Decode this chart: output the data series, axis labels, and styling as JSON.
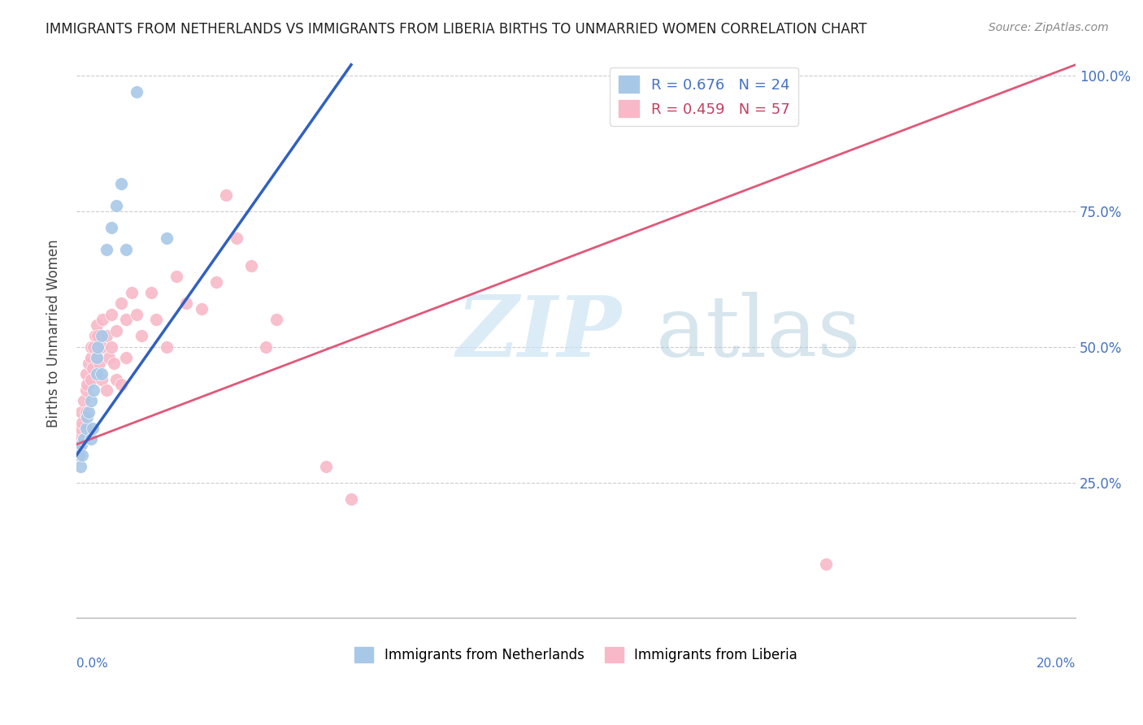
{
  "title": "IMMIGRANTS FROM NETHERLANDS VS IMMIGRANTS FROM LIBERIA BIRTHS TO UNMARRIED WOMEN CORRELATION CHART",
  "source": "Source: ZipAtlas.com",
  "ylabel": "Births to Unmarried Women",
  "yticks_right": [
    "25.0%",
    "50.0%",
    "75.0%",
    "100.0%"
  ],
  "yticks_right_vals": [
    0.25,
    0.5,
    0.75,
    1.0
  ],
  "legend_netherlands": "R = 0.676   N = 24",
  "legend_liberia": "R = 0.459   N = 57",
  "netherlands_color": "#a8c8e8",
  "liberia_color": "#f8b8c8",
  "netherlands_line_color": "#3060c0",
  "liberia_line_color": "#e05878",
  "nl_trend_x0": 0.0,
  "nl_trend_y0": 0.3,
  "nl_trend_x1": 0.055,
  "nl_trend_y1": 1.02,
  "lib_trend_x0": 0.0,
  "lib_trend_y0": 0.32,
  "lib_trend_x1": 0.2,
  "lib_trend_y1": 1.02,
  "netherlands_x": [
    0.0005,
    0.0008,
    0.001,
    0.0012,
    0.0015,
    0.002,
    0.0022,
    0.0025,
    0.003,
    0.003,
    0.0032,
    0.0035,
    0.004,
    0.004,
    0.0042,
    0.005,
    0.005,
    0.006,
    0.007,
    0.008,
    0.009,
    0.01,
    0.012,
    0.018
  ],
  "netherlands_y": [
    0.3,
    0.28,
    0.32,
    0.3,
    0.33,
    0.35,
    0.37,
    0.38,
    0.4,
    0.33,
    0.35,
    0.42,
    0.45,
    0.48,
    0.5,
    0.52,
    0.45,
    0.68,
    0.72,
    0.76,
    0.8,
    0.68,
    0.97,
    0.7
  ],
  "liberia_x": [
    0.0003,
    0.0005,
    0.0008,
    0.001,
    0.001,
    0.0012,
    0.0015,
    0.0015,
    0.002,
    0.002,
    0.002,
    0.0022,
    0.0025,
    0.0025,
    0.003,
    0.003,
    0.003,
    0.0032,
    0.0035,
    0.0038,
    0.004,
    0.004,
    0.0042,
    0.0045,
    0.005,
    0.005,
    0.0052,
    0.006,
    0.006,
    0.0065,
    0.007,
    0.007,
    0.0075,
    0.008,
    0.008,
    0.009,
    0.009,
    0.01,
    0.01,
    0.011,
    0.012,
    0.013,
    0.015,
    0.016,
    0.018,
    0.02,
    0.022,
    0.025,
    0.028,
    0.03,
    0.032,
    0.035,
    0.038,
    0.04,
    0.05,
    0.055,
    0.15
  ],
  "liberia_y": [
    0.33,
    0.3,
    0.35,
    0.32,
    0.38,
    0.36,
    0.33,
    0.4,
    0.42,
    0.38,
    0.45,
    0.43,
    0.47,
    0.35,
    0.48,
    0.5,
    0.44,
    0.46,
    0.5,
    0.52,
    0.48,
    0.54,
    0.52,
    0.47,
    0.5,
    0.44,
    0.55,
    0.42,
    0.52,
    0.48,
    0.56,
    0.5,
    0.47,
    0.53,
    0.44,
    0.58,
    0.43,
    0.55,
    0.48,
    0.6,
    0.56,
    0.52,
    0.6,
    0.55,
    0.5,
    0.63,
    0.58,
    0.57,
    0.62,
    0.78,
    0.7,
    0.65,
    0.5,
    0.55,
    0.28,
    0.22,
    0.1
  ],
  "xmin": 0.0,
  "xmax": 0.2,
  "ymin": 0.0,
  "ymax": 1.05
}
